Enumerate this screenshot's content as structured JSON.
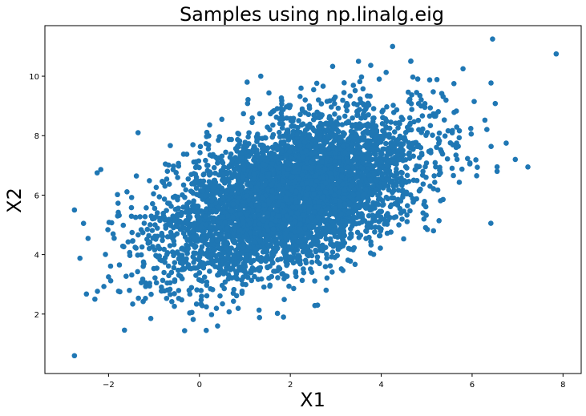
{
  "chart_data": {
    "type": "scatter",
    "title": "Samples using np.linalg.eig",
    "xlabel": "X1",
    "ylabel": "X2",
    "xlim": [
      -3.4,
      8.4
    ],
    "ylim": [
      0.0,
      11.7
    ],
    "x_ticks": [
      -2,
      0,
      2,
      4,
      6,
      8
    ],
    "y_ticks": [
      2,
      4,
      6,
      8,
      10
    ],
    "x_tick_labels": [
      "−2",
      "0",
      "2",
      "4",
      "6",
      "8"
    ],
    "y_tick_labels": [
      "2",
      "4",
      "6",
      "8",
      "10"
    ],
    "grid": false,
    "legend": "none",
    "marker_color": "#1f77b4",
    "distribution": {
      "kind": "bivariate_normal",
      "n": 5000,
      "mean": [
        2.0,
        6.0
      ],
      "std": [
        1.4,
        1.35
      ],
      "corr": 0.5
    },
    "points": [
      {
        "x": -2.75,
        "y": 0.6
      },
      {
        "x": -2.75,
        "y": 5.5
      },
      {
        "x": -2.25,
        "y": 6.75
      },
      {
        "x": -2.3,
        "y": 2.5
      },
      {
        "x": -2.0,
        "y": 3.25
      },
      {
        "x": -2.55,
        "y": 5.05
      },
      {
        "x": -1.75,
        "y": 2.75
      },
      {
        "x": -1.35,
        "y": 8.1
      },
      {
        "x": -1.8,
        "y": 5.3
      },
      {
        "x": 0.4,
        "y": 1.6
      },
      {
        "x": 0.15,
        "y": 1.45
      },
      {
        "x": 1.35,
        "y": 10.0
      },
      {
        "x": 1.05,
        "y": 9.8
      },
      {
        "x": 2.6,
        "y": 2.3
      },
      {
        "x": 1.85,
        "y": 1.9
      },
      {
        "x": 3.5,
        "y": 10.5
      },
      {
        "x": 4.25,
        "y": 11.0
      },
      {
        "x": 4.65,
        "y": 10.5
      },
      {
        "x": 5.15,
        "y": 4.8
      },
      {
        "x": 5.6,
        "y": 9.75
      },
      {
        "x": 5.8,
        "y": 10.25
      },
      {
        "x": 6.45,
        "y": 11.25
      },
      {
        "x": 7.85,
        "y": 10.75
      },
      {
        "x": 6.75,
        "y": 7.75
      },
      {
        "x": 6.95,
        "y": 7.2
      },
      {
        "x": 6.55,
        "y": 6.8
      },
      {
        "x": 6.55,
        "y": 6.95
      },
      {
        "x": 6.1,
        "y": 6.65
      },
      {
        "x": 5.95,
        "y": 7.05
      }
    ]
  }
}
